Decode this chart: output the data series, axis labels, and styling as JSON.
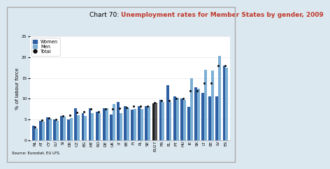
{
  "title_prefix": "Chart 70: ",
  "title_main": "Unemployment rates for Member States by gender, 2009",
  "ylabel": "% of labour force",
  "source": "Source: Eurostat, EU LFS.",
  "countries": [
    "NL",
    "AT",
    "CY",
    "LU",
    "SI",
    "DK",
    "CZ",
    "BG",
    "MT",
    "RO",
    "DE",
    "UK",
    "IT",
    "BE",
    "FI",
    "PL",
    "SE",
    "EU27",
    "FR",
    "EL",
    "PT",
    "HU",
    "IE",
    "SK",
    "LT",
    "EE",
    "LV",
    "ES"
  ],
  "women": [
    3.5,
    4.7,
    5.6,
    5.0,
    5.8,
    5.1,
    7.7,
    6.5,
    7.8,
    6.8,
    7.8,
    6.2,
    9.3,
    8.2,
    7.3,
    8.2,
    8.2,
    8.9,
    9.7,
    13.3,
    10.5,
    10.0,
    8.0,
    12.7,
    11.4,
    10.5,
    10.5,
    17.9
  ],
  "men": [
    2.8,
    4.5,
    5.2,
    4.7,
    5.7,
    5.3,
    6.0,
    5.8,
    6.5,
    6.5,
    7.8,
    8.7,
    6.6,
    7.9,
    7.5,
    7.6,
    8.3,
    9.0,
    9.3,
    9.2,
    10.2,
    9.8,
    15.0,
    12.5,
    17.0,
    16.8,
    20.4,
    17.5
  ],
  "total": [
    3.2,
    4.9,
    5.4,
    5.1,
    5.9,
    6.0,
    6.7,
    6.8,
    7.5,
    6.9,
    7.5,
    7.6,
    7.8,
    7.9,
    8.2,
    8.2,
    8.3,
    9.0,
    9.5,
    9.5,
    10.1,
    10.0,
    11.9,
    12.0,
    13.8,
    13.8,
    18.0,
    18.0
  ],
  "women_color": "#2e5fa3",
  "men_color": "#7bafd4",
  "eu27_women_color": "#1a1a1a",
  "eu27_men_color": "#555555",
  "dot_color": "#111111",
  "ylim": [
    0,
    25
  ],
  "yticks": [
    0,
    5,
    10,
    15,
    20,
    25
  ],
  "bar_width": 0.38,
  "title_fontsize": 6.5,
  "axis_label_fontsize": 5,
  "tick_fontsize": 4.2,
  "legend_fontsize": 4.8,
  "bg_color": "#ffffff",
  "fig_bg_color": "#dce8f0",
  "grid_color": "#e8e8e8",
  "title_color_prefix": "#000000",
  "title_color_main": "#c0392b"
}
